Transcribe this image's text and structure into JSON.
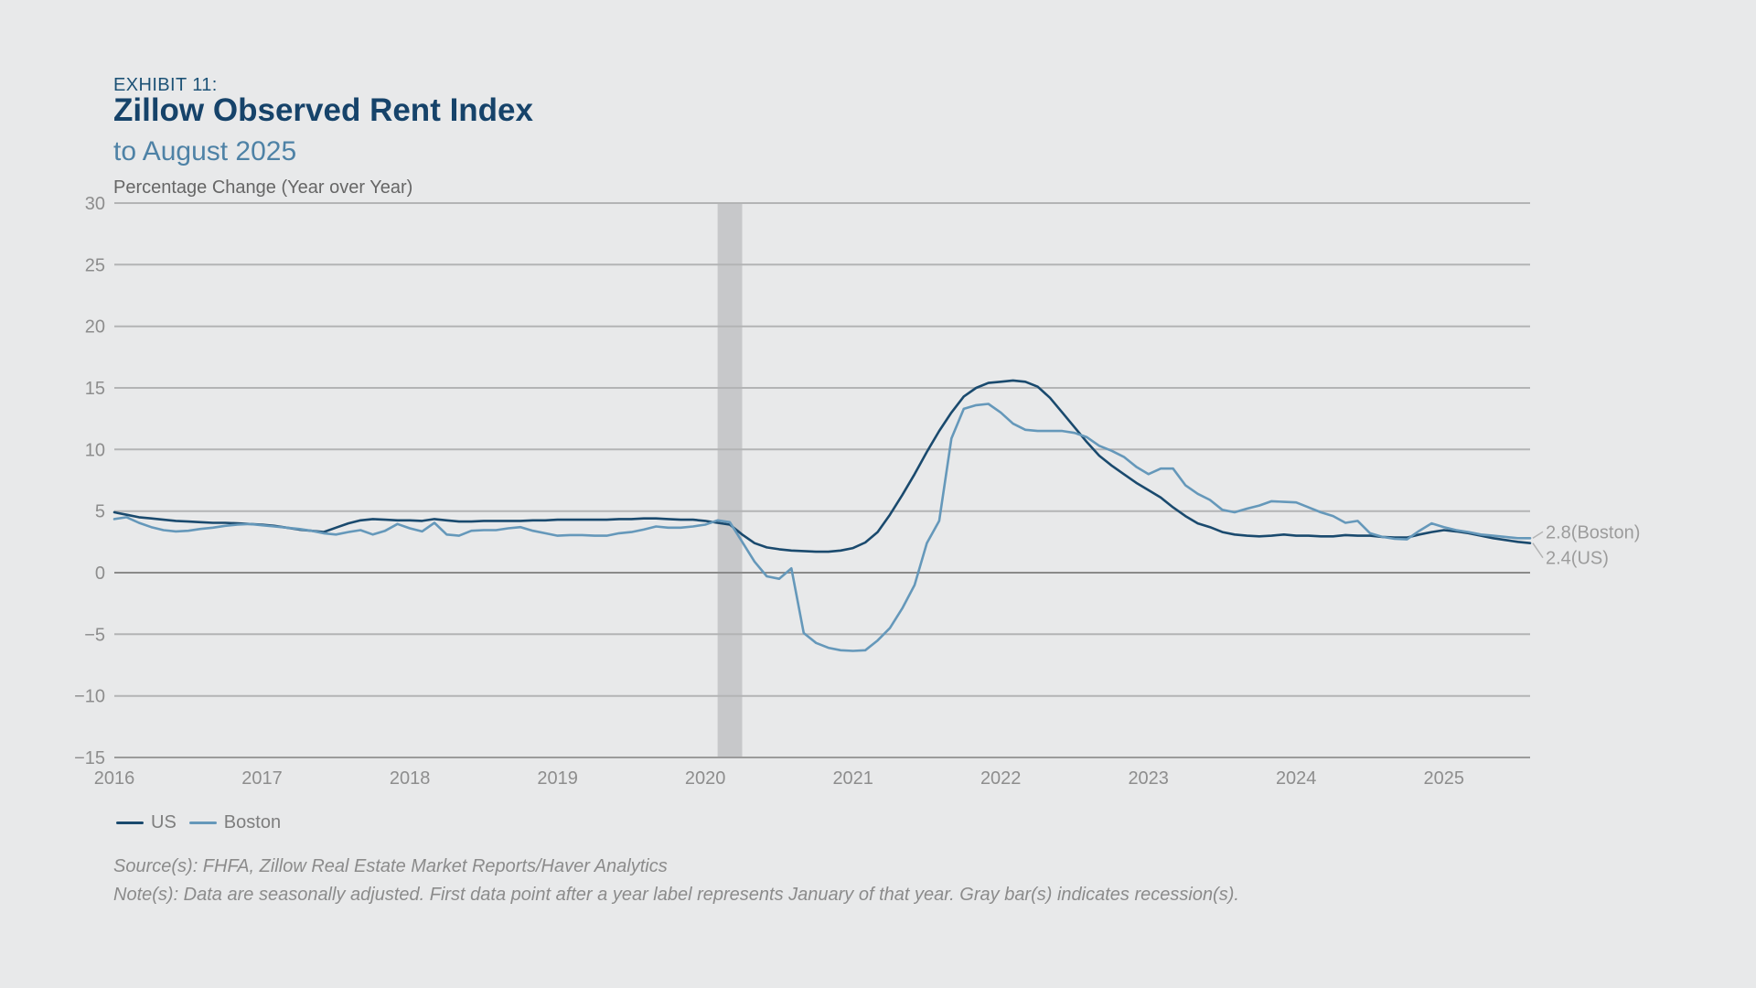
{
  "header": {
    "exhibit": "EXHIBIT 11:",
    "title": "Zillow Observed Rent Index",
    "subtitle": "to August 2025",
    "axis_title": "Percentage Change (Year over Year)"
  },
  "footer": {
    "source": "Source(s): FHFA, Zillow Real Estate Market Reports/Haver Analytics",
    "note": "Note(s): Data are seasonally adjusted. First data point after a year label represents January of that year. Gray bar(s) indicates recession(s)."
  },
  "colors": {
    "background": "#E8E9EA",
    "recession_band": "#C7C8CA",
    "grid": "#B3B4B5",
    "grid_zero": "#8A8A8A",
    "grid_axis": "#9B9B9B",
    "tick_label": "#8D8D8D",
    "end_label": "#9C9C9C",
    "leader_line": "#B4B4B4",
    "title_navy": "#16436A",
    "subtitle_blue": "#4E82A6",
    "us_line": "#1A4A6E",
    "boston_line": "#6598BA"
  },
  "chart_data": {
    "type": "line",
    "title": "Zillow Observed Rent Index to August 2025",
    "ylabel": "Percentage Change (Year over Year)",
    "x_unit": "month",
    "x_start": "2016-01",
    "x_end": "2025-08",
    "ylim": [
      -15,
      30
    ],
    "yticks": [
      30,
      25,
      20,
      15,
      10,
      5,
      0,
      -5,
      -10,
      -15
    ],
    "xticks": [
      2016,
      2017,
      2018,
      2019,
      2020,
      2021,
      2022,
      2023,
      2024,
      2025
    ],
    "grid": true,
    "legend_position": "bottom-left",
    "recession_band_months": {
      "start_index": 49,
      "end_index": 51,
      "label": "Feb 2020 - Apr 2020"
    },
    "series": [
      {
        "name": "US",
        "color": "#1A4A6E",
        "end_label": "2.4(US)",
        "end_value": 2.4,
        "values": [
          4.9,
          4.7,
          4.5,
          4.4,
          4.3,
          4.2,
          4.15,
          4.1,
          4.05,
          4.05,
          4.0,
          3.95,
          3.9,
          3.8,
          3.65,
          3.5,
          3.4,
          3.3,
          3.65,
          4.0,
          4.25,
          4.35,
          4.3,
          4.25,
          4.25,
          4.2,
          4.35,
          4.25,
          4.15,
          4.15,
          4.2,
          4.2,
          4.2,
          4.2,
          4.25,
          4.25,
          4.3,
          4.3,
          4.3,
          4.3,
          4.3,
          4.35,
          4.35,
          4.4,
          4.4,
          4.35,
          4.3,
          4.3,
          4.2,
          4.05,
          3.9,
          3.1,
          2.4,
          2.05,
          1.9,
          1.8,
          1.75,
          1.7,
          1.7,
          1.8,
          2.0,
          2.45,
          3.3,
          4.7,
          6.3,
          8.0,
          9.8,
          11.5,
          13.0,
          14.3,
          15.0,
          15.4,
          15.5,
          15.6,
          15.5,
          15.1,
          14.2,
          13.0,
          11.8,
          10.6,
          9.5,
          8.7,
          8.0,
          7.3,
          6.7,
          6.1,
          5.3,
          4.6,
          4.0,
          3.7,
          3.3,
          3.1,
          3.0,
          2.95,
          3.0,
          3.1,
          3.0,
          3.0,
          2.95,
          2.95,
          3.05,
          3.0,
          3.0,
          2.9,
          2.85,
          2.85,
          3.1,
          3.3,
          3.45,
          3.35,
          3.2,
          3.0,
          2.8,
          2.65,
          2.5,
          2.4
        ]
      },
      {
        "name": "Boston",
        "color": "#6598BA",
        "end_label": "2.8(Boston)",
        "end_value": 2.8,
        "values": [
          4.35,
          4.5,
          4.05,
          3.7,
          3.45,
          3.35,
          3.4,
          3.55,
          3.65,
          3.8,
          3.9,
          3.95,
          3.85,
          3.75,
          3.65,
          3.55,
          3.4,
          3.2,
          3.1,
          3.3,
          3.45,
          3.1,
          3.4,
          3.95,
          3.6,
          3.35,
          4.05,
          3.1,
          3.0,
          3.4,
          3.45,
          3.45,
          3.6,
          3.7,
          3.4,
          3.2,
          3.0,
          3.05,
          3.05,
          3.0,
          3.0,
          3.2,
          3.3,
          3.5,
          3.75,
          3.65,
          3.65,
          3.75,
          3.9,
          4.25,
          4.1,
          2.5,
          0.9,
          -0.3,
          -0.5,
          0.35,
          -4.9,
          -5.7,
          -6.1,
          -6.3,
          -6.35,
          -6.3,
          -5.5,
          -4.5,
          -2.9,
          -1.0,
          2.4,
          4.2,
          10.9,
          13.3,
          13.6,
          13.7,
          13.0,
          12.1,
          11.6,
          11.5,
          11.5,
          11.5,
          11.35,
          11.0,
          10.3,
          9.9,
          9.4,
          8.6,
          8.0,
          8.45,
          8.45,
          7.1,
          6.4,
          5.9,
          5.1,
          4.9,
          5.2,
          5.45,
          5.8,
          5.75,
          5.7,
          5.3,
          4.9,
          4.6,
          4.05,
          4.2,
          3.2,
          2.9,
          2.75,
          2.7,
          3.4,
          4.0,
          3.7,
          3.45,
          3.3,
          3.1,
          3.0,
          2.9,
          2.8,
          2.8
        ]
      }
    ]
  }
}
